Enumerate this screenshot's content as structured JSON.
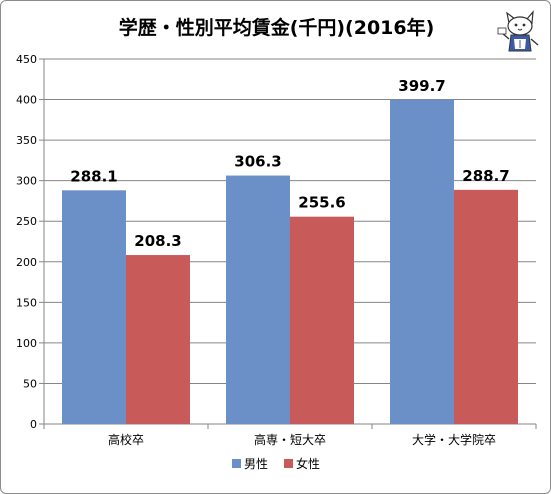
{
  "title": "学歴・性別平均賃金(千円)(2016年)",
  "mascot_icon": "cat-mascot-icon",
  "colors": {
    "male": "#6b8fc7",
    "female": "#c85a5a",
    "grid": "#868686",
    "axis": "#868686",
    "text": "#000000"
  },
  "chart_data": {
    "type": "bar",
    "title": "学歴・性別平均賃金(千円)(2016年)",
    "categories": [
      "高校卒",
      "高専・短大卒",
      "大学・大学院卒"
    ],
    "series": [
      {
        "name": "男性",
        "values": [
          288.1,
          306.3,
          399.7
        ]
      },
      {
        "name": "女性",
        "values": [
          208.3,
          255.6,
          288.7
        ]
      }
    ],
    "yticks": [
      0,
      50,
      100,
      150,
      200,
      250,
      300,
      350,
      400,
      450
    ],
    "ylim": [
      0,
      450
    ],
    "xlabel": "",
    "ylabel": "",
    "grid": true,
    "legend": "bottom",
    "data_labels": [
      "288.1",
      "306.3",
      "399.7",
      "208.3",
      "255.6",
      "288.7"
    ]
  }
}
